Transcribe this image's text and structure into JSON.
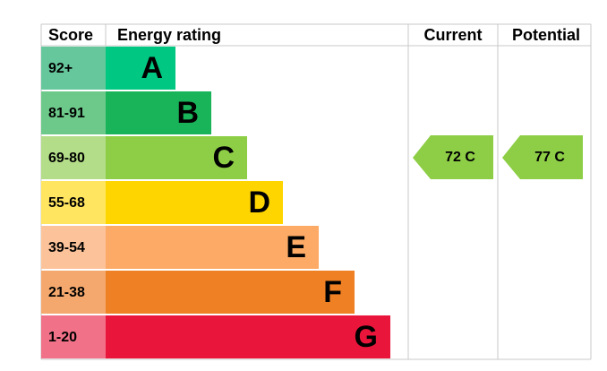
{
  "header": {
    "score": "Score",
    "rating": "Energy rating",
    "current": "Current",
    "potential": "Potential"
  },
  "bands": [
    {
      "score": "92+",
      "letter": "A"
    },
    {
      "score": "81-91",
      "letter": "B"
    },
    {
      "score": "69-80",
      "letter": "C"
    },
    {
      "score": "55-68",
      "letter": "D"
    },
    {
      "score": "39-54",
      "letter": "E"
    },
    {
      "score": "21-38",
      "letter": "F"
    },
    {
      "score": "1-20",
      "letter": "G"
    }
  ],
  "current": {
    "label": "72 C"
  },
  "potential": {
    "label": "77 C"
  }
}
